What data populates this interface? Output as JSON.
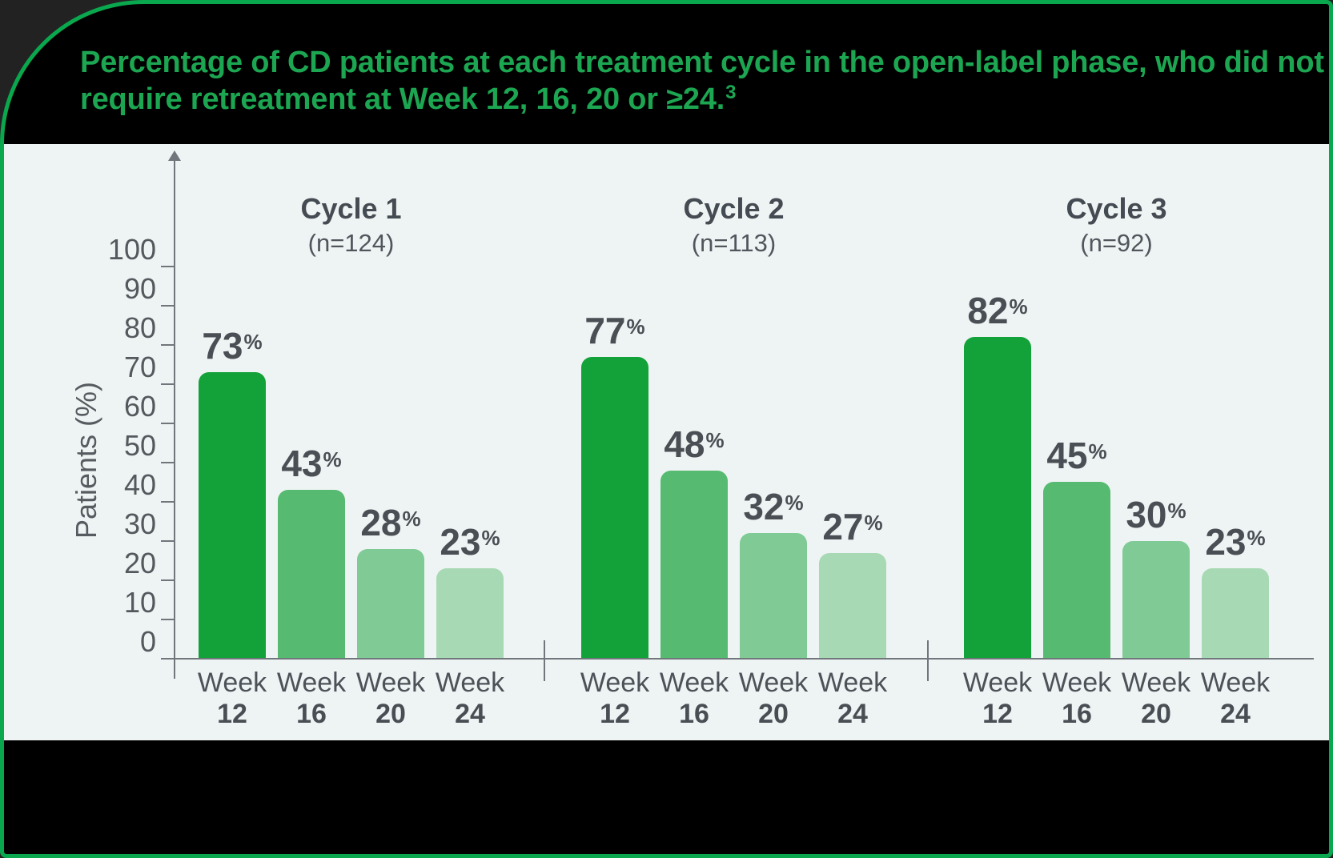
{
  "title": {
    "line1": "Percentage of CD patients at each treatment cycle in the open-label phase, who did not",
    "line2": "require retreatment at Week 12, 16, 20 or ≥24.",
    "superscript": "3"
  },
  "chart_data": {
    "type": "bar",
    "title": "Percentage of CD patients at each treatment cycle in the open-label phase, who did not require retreatment at Week 12, 16, 20 or ≥24.3",
    "ylabel": "Patients (%)",
    "ylim": [
      0,
      100
    ],
    "yticks": [
      0,
      10,
      20,
      30,
      40,
      50,
      60,
      70,
      80,
      90,
      100
    ],
    "grid": false,
    "legend_position": "none",
    "unit": "%",
    "week_word": "Week",
    "week_numbers": [
      "12",
      "16",
      "20",
      "24"
    ],
    "categories": [
      "Week 12",
      "Week 16",
      "Week 20",
      "Week 24"
    ],
    "groups": [
      {
        "name": "Cycle 1",
        "n_label": "(n=124)",
        "values": [
          73,
          43,
          28,
          23
        ]
      },
      {
        "name": "Cycle 2",
        "n_label": "(n=113)",
        "values": [
          77,
          48,
          32,
          27
        ]
      },
      {
        "name": "Cycle 3",
        "n_label": "(n=92)",
        "values": [
          82,
          45,
          30,
          23
        ]
      }
    ],
    "bar_colors": [
      "#13A23A",
      "#56BA70",
      "#7FCA95",
      "#A8D9B5"
    ]
  },
  "colors": {
    "frame_background": "#000000",
    "border_green": "#0AA84E",
    "title_green": "#1CA652",
    "panel_background": "#EEF4F3",
    "axis_gray": "#70767B",
    "text_dark": "#4A4F55"
  }
}
